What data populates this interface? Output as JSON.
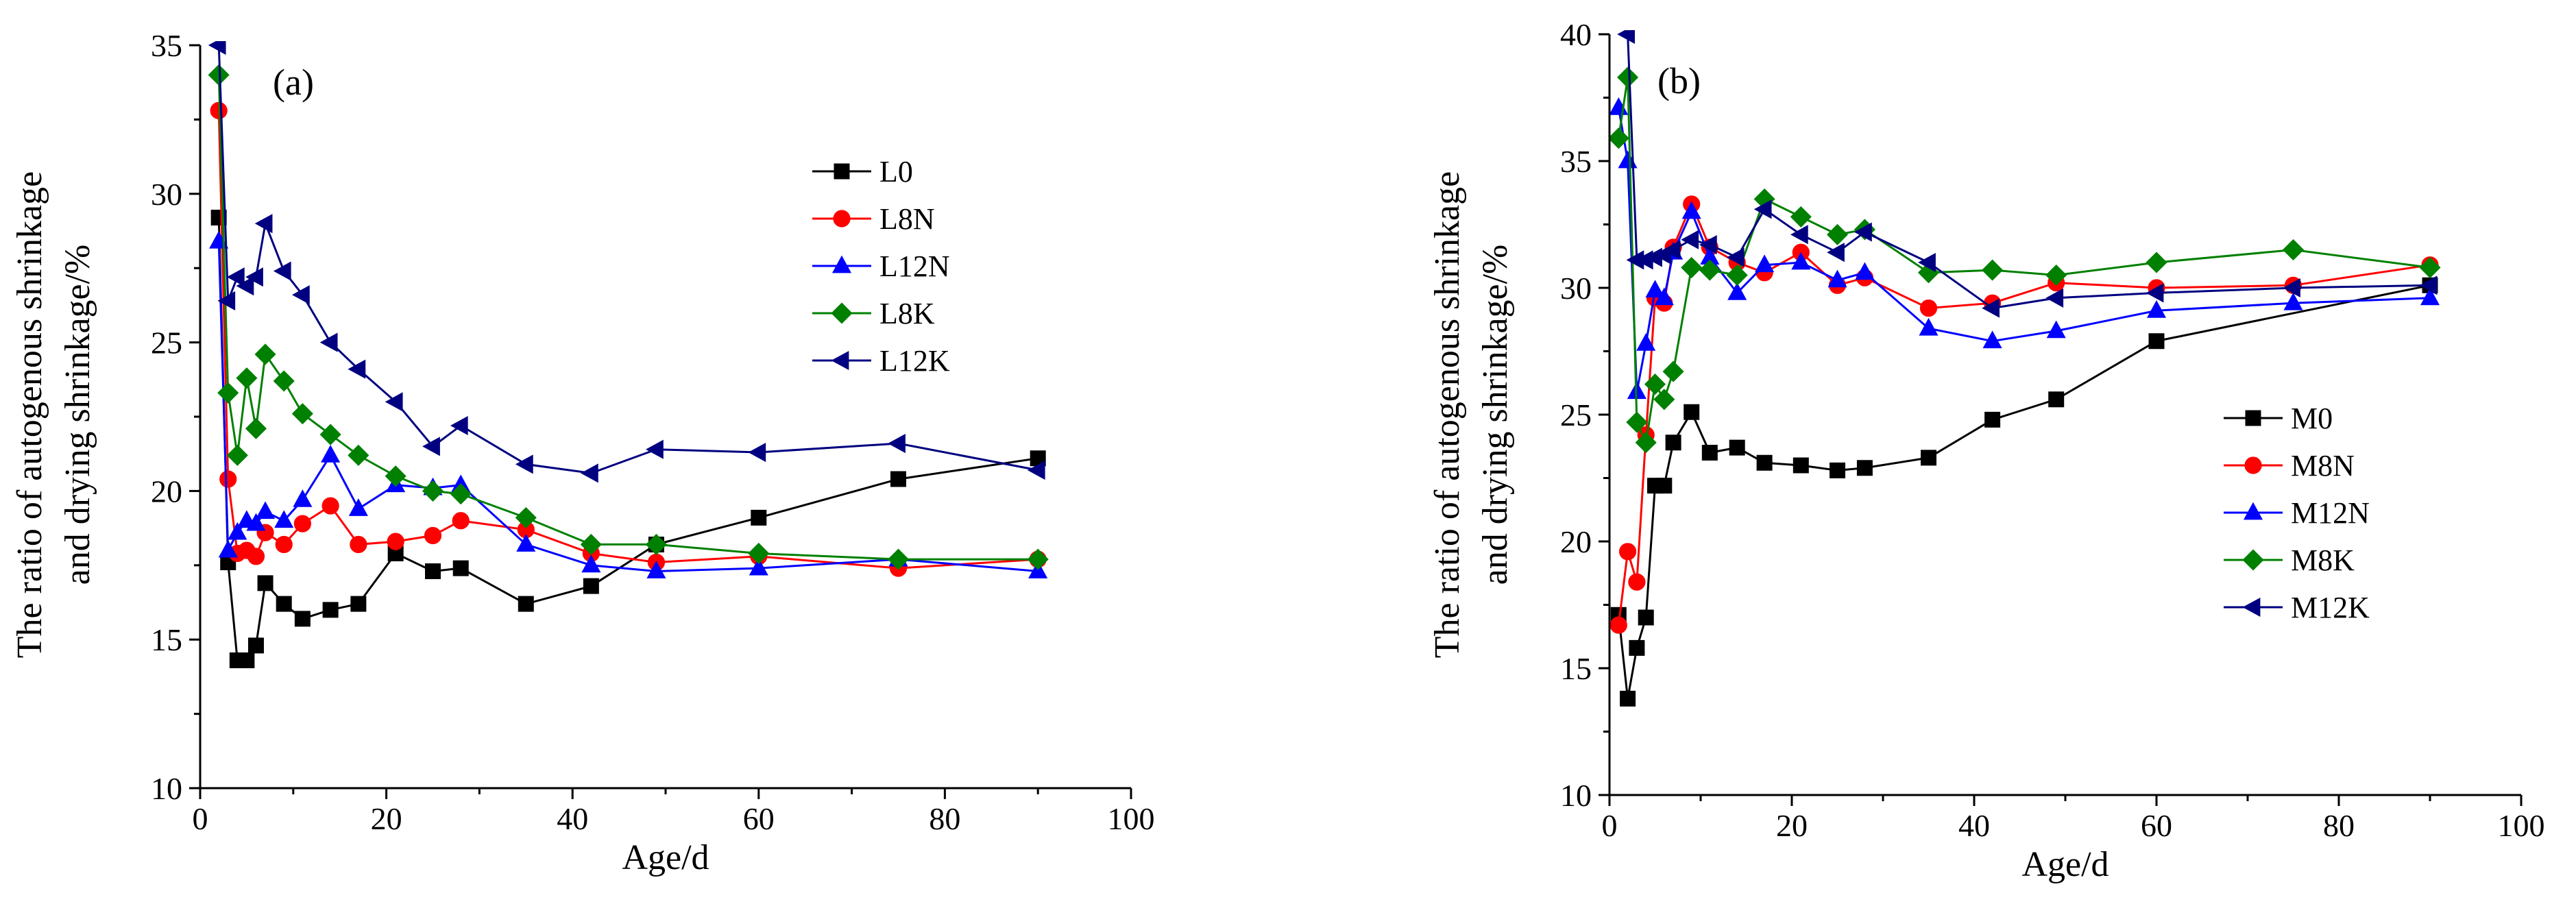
{
  "figure": {
    "panel_labels": [
      "(a)",
      "(b)"
    ]
  },
  "chart_data": [
    {
      "type": "line",
      "panel": "(a)",
      "title": "",
      "xlabel": "Age/d",
      "ylabel": [
        "The ratio of autogenous shrinkage",
        "and drying shrinkage/%"
      ],
      "xlim": [
        0,
        100
      ],
      "ylim": [
        10,
        35
      ],
      "xticks": [
        0,
        20,
        40,
        60,
        80,
        100
      ],
      "yticks": [
        10,
        15,
        20,
        25,
        30,
        35
      ],
      "grid": false,
      "legend_position": "top-right",
      "series": [
        {
          "name": "L0",
          "color": "#000000",
          "marker": "square",
          "x": [
            2,
            3,
            4,
            5,
            6,
            7,
            9,
            11,
            14,
            17,
            21,
            25,
            28,
            35,
            42,
            49,
            60,
            75,
            90
          ],
          "y": [
            29.2,
            17.6,
            14.3,
            14.3,
            14.8,
            16.9,
            16.2,
            15.7,
            16.0,
            16.2,
            17.9,
            17.3,
            17.4,
            16.2,
            16.8,
            18.2,
            19.1,
            20.4,
            21.1
          ]
        },
        {
          "name": "L8N",
          "color": "#ff0000",
          "marker": "circle",
          "x": [
            2,
            3,
            4,
            5,
            6,
            7,
            9,
            11,
            14,
            17,
            21,
            25,
            28,
            35,
            42,
            49,
            60,
            75,
            90
          ],
          "y": [
            32.8,
            20.4,
            17.9,
            18.0,
            17.8,
            18.6,
            18.2,
            18.9,
            19.5,
            18.2,
            18.3,
            18.5,
            19.0,
            18.7,
            17.9,
            17.6,
            17.8,
            17.4,
            17.7
          ]
        },
        {
          "name": "L12N",
          "color": "#0000ff",
          "marker": "triangle-up",
          "x": [
            2,
            3,
            4,
            5,
            6,
            7,
            9,
            11,
            14,
            17,
            21,
            25,
            28,
            35,
            42,
            49,
            60,
            75,
            90
          ],
          "y": [
            28.4,
            18.0,
            18.6,
            19.0,
            18.9,
            19.3,
            19.0,
            19.7,
            21.2,
            19.4,
            20.2,
            20.1,
            20.2,
            18.2,
            17.5,
            17.3,
            17.4,
            17.7,
            17.3
          ]
        },
        {
          "name": "L8K",
          "color": "#008000",
          "marker": "diamond",
          "x": [
            2,
            3,
            4,
            5,
            6,
            7,
            9,
            11,
            14,
            17,
            21,
            25,
            28,
            35,
            42,
            49,
            60,
            75,
            90
          ],
          "y": [
            34.0,
            23.3,
            21.2,
            23.8,
            22.1,
            24.6,
            23.7,
            22.6,
            21.9,
            21.2,
            20.5,
            20.0,
            19.9,
            19.1,
            18.2,
            18.2,
            17.9,
            17.7,
            17.7
          ]
        },
        {
          "name": "L12K",
          "color": "#000080",
          "marker": "triangle-left",
          "x": [
            2,
            3,
            4,
            5,
            6,
            7,
            9,
            11,
            14,
            17,
            21,
            25,
            28,
            35,
            42,
            49,
            60,
            75,
            90
          ],
          "y": [
            35.0,
            26.4,
            27.2,
            26.9,
            27.2,
            29.0,
            27.4,
            26.6,
            25.0,
            24.1,
            23.0,
            21.5,
            22.2,
            20.9,
            20.6,
            21.4,
            21.3,
            21.6,
            20.7
          ]
        }
      ]
    },
    {
      "type": "line",
      "panel": "(b)",
      "title": "",
      "xlabel": "Age/d",
      "ylabel": [
        "The ratio of autogenous shrinkage",
        "and drying shrinkage/%"
      ],
      "xlim": [
        0,
        100
      ],
      "ylim": [
        10,
        40
      ],
      "xticks": [
        0,
        20,
        40,
        60,
        80,
        100
      ],
      "yticks": [
        10,
        15,
        20,
        25,
        30,
        35,
        40
      ],
      "grid": false,
      "legend_position": "middle-right",
      "series": [
        {
          "name": "M0",
          "color": "#000000",
          "marker": "square",
          "x": [
            1,
            2,
            3,
            4,
            5,
            6,
            7,
            9,
            11,
            14,
            17,
            21,
            25,
            28,
            35,
            42,
            49,
            60,
            90
          ],
          "y": [
            17.1,
            13.8,
            15.8,
            17.0,
            22.2,
            22.2,
            23.9,
            25.1,
            23.5,
            23.7,
            23.1,
            23.0,
            22.8,
            22.9,
            23.3,
            24.8,
            25.6,
            27.9,
            30.1
          ]
        },
        {
          "name": "M8N",
          "color": "#ff0000",
          "marker": "circle",
          "x": [
            1,
            2,
            3,
            4,
            5,
            6,
            7,
            9,
            11,
            14,
            17,
            21,
            25,
            28,
            35,
            42,
            49,
            60,
            75,
            90
          ],
          "y": [
            16.7,
            19.6,
            18.4,
            24.2,
            29.6,
            29.4,
            31.6,
            33.3,
            31.6,
            31.0,
            30.6,
            31.4,
            30.1,
            30.4,
            29.2,
            29.4,
            30.2,
            30.0,
            30.1,
            30.9
          ]
        },
        {
          "name": "M12N",
          "color": "#0000ff",
          "marker": "triangle-up",
          "x": [
            1,
            2,
            3,
            4,
            5,
            6,
            7,
            9,
            11,
            14,
            17,
            21,
            25,
            28,
            35,
            42,
            49,
            60,
            75,
            90
          ],
          "y": [
            37.1,
            35.0,
            25.9,
            27.8,
            29.9,
            29.6,
            31.4,
            33.0,
            31.2,
            29.8,
            30.9,
            31.0,
            30.3,
            30.6,
            28.4,
            27.9,
            28.3,
            29.1,
            29.4,
            29.6
          ]
        },
        {
          "name": "M8K",
          "color": "#008000",
          "marker": "diamond",
          "x": [
            1,
            2,
            3,
            4,
            5,
            6,
            7,
            9,
            11,
            14,
            17,
            21,
            25,
            28,
            35,
            42,
            49,
            60,
            75,
            90
          ],
          "y": [
            35.9,
            38.3,
            24.7,
            23.9,
            26.2,
            25.6,
            26.7,
            30.8,
            30.7,
            30.5,
            33.5,
            32.8,
            32.1,
            32.3,
            30.6,
            30.7,
            30.5,
            31.0,
            31.5,
            30.8
          ]
        },
        {
          "name": "M12K",
          "color": "#000080",
          "marker": "triangle-left",
          "x": [
            2,
            3,
            4,
            5,
            6,
            7,
            9,
            11,
            14,
            17,
            21,
            25,
            28,
            35,
            42,
            49,
            60,
            75,
            90
          ],
          "y": [
            40.0,
            31.1,
            31.1,
            31.2,
            31.3,
            31.5,
            31.9,
            31.7,
            31.2,
            33.1,
            32.1,
            31.4,
            32.2,
            31.0,
            29.2,
            29.6,
            29.8,
            30.0,
            30.1
          ]
        }
      ]
    }
  ]
}
